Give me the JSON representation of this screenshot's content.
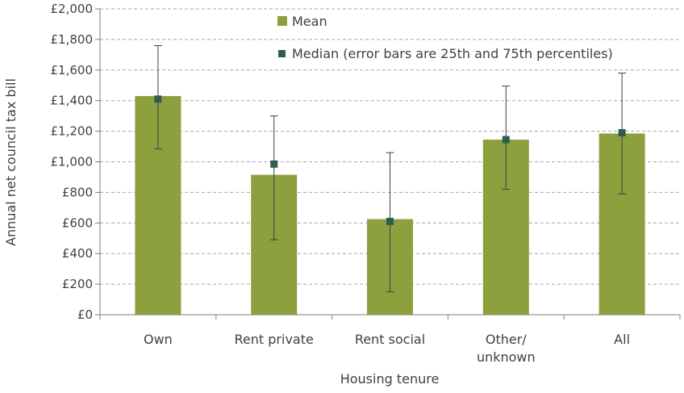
{
  "chart_data": {
    "type": "bar",
    "xlabel": "Housing tenure",
    "ylabel": "Annual net council tax bill",
    "ylim": [
      0,
      2000
    ],
    "yticks": [
      0,
      200,
      400,
      600,
      800,
      1000,
      1200,
      1400,
      1600,
      1800,
      2000
    ],
    "ytick_labels": [
      "£0",
      "£200",
      "£400",
      "£600",
      "£800",
      "£1,000",
      "£1,200",
      "£1,400",
      "£1,600",
      "£1,800",
      "£2,000"
    ],
    "categories": [
      [
        "Own"
      ],
      [
        "Rent private"
      ],
      [
        "Rent social"
      ],
      [
        "Other/",
        "unknown"
      ],
      [
        "All"
      ]
    ],
    "grid": true,
    "legend_position": "top-right",
    "series": [
      {
        "name": "Mean",
        "type": "bar",
        "color": "#8da03e",
        "values": [
          1430,
          915,
          625,
          1145,
          1185
        ]
      },
      {
        "name": "Median (error bars are 25th and 75th percentiles)",
        "type": "scatter",
        "marker": "square",
        "color": "#2e5e4e",
        "values": [
          1410,
          985,
          610,
          1145,
          1190
        ],
        "error_low": [
          1085,
          490,
          150,
          820,
          790
        ],
        "error_high": [
          1760,
          1300,
          1060,
          1495,
          1580
        ]
      }
    ]
  }
}
